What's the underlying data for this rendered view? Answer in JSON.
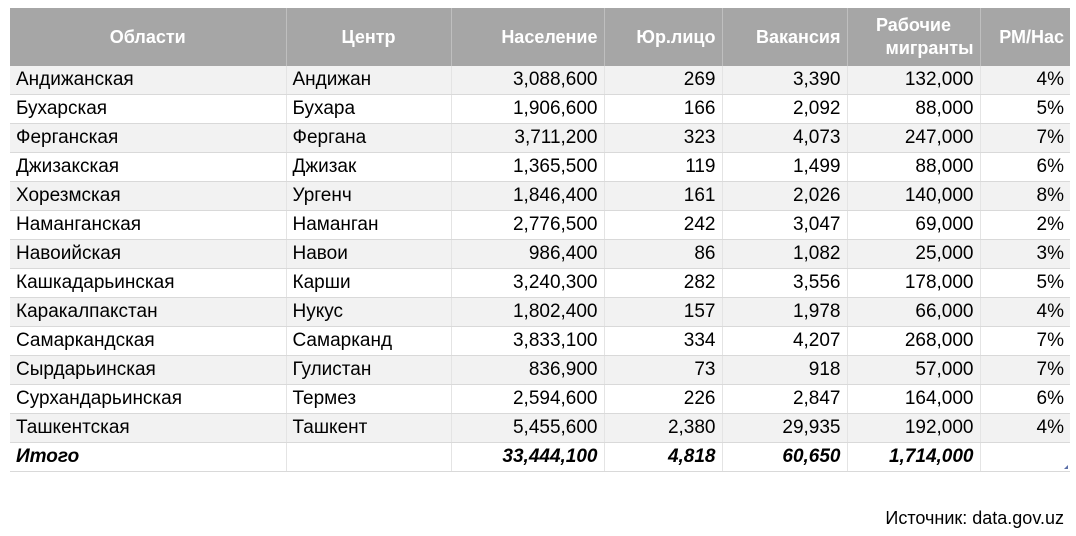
{
  "table": {
    "headers": {
      "region": "Области",
      "center": "Центр",
      "population": "Население",
      "legal_entities": "Юр.лицо",
      "vacancies": "Вакансия",
      "migrants_line1": "Рабочие",
      "migrants_line2": "мигранты",
      "ratio": "РМ/Нас"
    },
    "rows": [
      {
        "region": "Андижанская",
        "center": "Андижан",
        "population": "3,088,600",
        "legal_entities": "269",
        "vacancies": "3,390",
        "migrants": "132,000",
        "ratio": "4%"
      },
      {
        "region": "Бухарская",
        "center": "Бухара",
        "population": "1,906,600",
        "legal_entities": "166",
        "vacancies": "2,092",
        "migrants": "88,000",
        "ratio": "5%"
      },
      {
        "region": "Ферганская",
        "center": "Фергана",
        "population": "3,711,200",
        "legal_entities": "323",
        "vacancies": "4,073",
        "migrants": "247,000",
        "ratio": "7%"
      },
      {
        "region": "Джизакская",
        "center": "Джизак",
        "population": "1,365,500",
        "legal_entities": "119",
        "vacancies": "1,499",
        "migrants": "88,000",
        "ratio": "6%"
      },
      {
        "region": "Хорезмская",
        "center": "Ургенч",
        "population": "1,846,400",
        "legal_entities": "161",
        "vacancies": "2,026",
        "migrants": "140,000",
        "ratio": "8%"
      },
      {
        "region": "Наманганская",
        "center": "Наманган",
        "population": "2,776,500",
        "legal_entities": "242",
        "vacancies": "3,047",
        "migrants": "69,000",
        "ratio": "2%"
      },
      {
        "region": "Навоийская",
        "center": "Навои",
        "population": "986,400",
        "legal_entities": "86",
        "vacancies": "1,082",
        "migrants": "25,000",
        "ratio": "3%"
      },
      {
        "region": "Кашкадарьинская",
        "center": "Карши",
        "population": "3,240,300",
        "legal_entities": "282",
        "vacancies": "3,556",
        "migrants": "178,000",
        "ratio": "5%"
      },
      {
        "region": "Каракалпакстан",
        "center": "Нукус",
        "population": "1,802,400",
        "legal_entities": "157",
        "vacancies": "1,978",
        "migrants": "66,000",
        "ratio": "4%"
      },
      {
        "region": "Самаркандская",
        "center": "Самарканд",
        "population": "3,833,100",
        "legal_entities": "334",
        "vacancies": "4,207",
        "migrants": "268,000",
        "ratio": "7%"
      },
      {
        "region": "Сырдарьинская",
        "center": "Гулистан",
        "population": "836,900",
        "legal_entities": "73",
        "vacancies": "918",
        "migrants": "57,000",
        "ratio": "7%"
      },
      {
        "region": "Сурхандарьинская",
        "center": "Термез",
        "population": "2,594,600",
        "legal_entities": "226",
        "vacancies": "2,847",
        "migrants": "164,000",
        "ratio": "6%"
      },
      {
        "region": "Ташкентская",
        "center": "Ташкент",
        "population": "5,455,600",
        "legal_entities": "2,380",
        "vacancies": "29,935",
        "migrants": "192,000",
        "ratio": "4%"
      }
    ],
    "total": {
      "label": "Итого",
      "population": "33,444,100",
      "legal_entities": "4,818",
      "vacancies": "60,650",
      "migrants": "1,714,000"
    }
  },
  "source": "Источник: data.gov.uz",
  "colors": {
    "header_bg": "#a6a6a6",
    "header_text": "#ffffff",
    "band_bg": "#f2f2f2"
  }
}
